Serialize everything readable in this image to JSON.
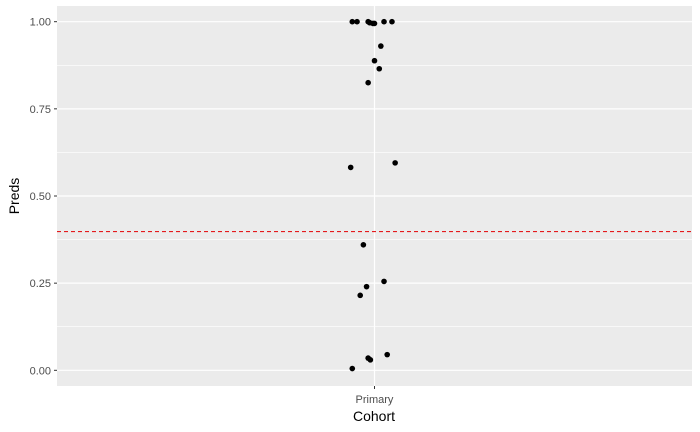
{
  "chart_data": {
    "type": "scatter",
    "title": "",
    "xlabel": "Cohort",
    "ylabel": "Preds",
    "categories": [
      "Primary"
    ],
    "ylim": [
      -0.045,
      1.045
    ],
    "y_ticks": [
      0.0,
      0.25,
      0.5,
      0.75,
      1.0
    ],
    "y_tick_labels": [
      "0.00",
      "0.25",
      "0.50",
      "0.75",
      "1.00"
    ],
    "grid": true,
    "legend": "none",
    "reference_line": {
      "y": 0.398,
      "color": "#e41a1c",
      "style": "dashed"
    },
    "series": [
      {
        "category": "Primary",
        "points": [
          {
            "jitter": -0.07,
            "y": 1.0
          },
          {
            "jitter": -0.055,
            "y": 1.0
          },
          {
            "jitter": -0.02,
            "y": 1.0
          },
          {
            "jitter": -0.015,
            "y": 0.997
          },
          {
            "jitter": -0.005,
            "y": 0.995
          },
          {
            "jitter": 0.0,
            "y": 0.995
          },
          {
            "jitter": 0.03,
            "y": 1.0
          },
          {
            "jitter": 0.055,
            "y": 1.0
          },
          {
            "jitter": 0.02,
            "y": 0.93
          },
          {
            "jitter": 0.0,
            "y": 0.888
          },
          {
            "jitter": 0.015,
            "y": 0.865
          },
          {
            "jitter": -0.02,
            "y": 0.825
          },
          {
            "jitter": 0.065,
            "y": 0.595
          },
          {
            "jitter": -0.075,
            "y": 0.582
          },
          {
            "jitter": -0.035,
            "y": 0.36
          },
          {
            "jitter": 0.03,
            "y": 0.255
          },
          {
            "jitter": -0.025,
            "y": 0.24
          },
          {
            "jitter": -0.045,
            "y": 0.215
          },
          {
            "jitter": 0.04,
            "y": 0.045
          },
          {
            "jitter": -0.02,
            "y": 0.035
          },
          {
            "jitter": -0.013,
            "y": 0.03
          },
          {
            "jitter": -0.07,
            "y": 0.005
          }
        ]
      }
    ],
    "colors": {
      "panel": "#ebebeb",
      "grid": "#ffffff",
      "point": "#000000",
      "tick": "#333333",
      "text": "#4d4d4d"
    }
  }
}
